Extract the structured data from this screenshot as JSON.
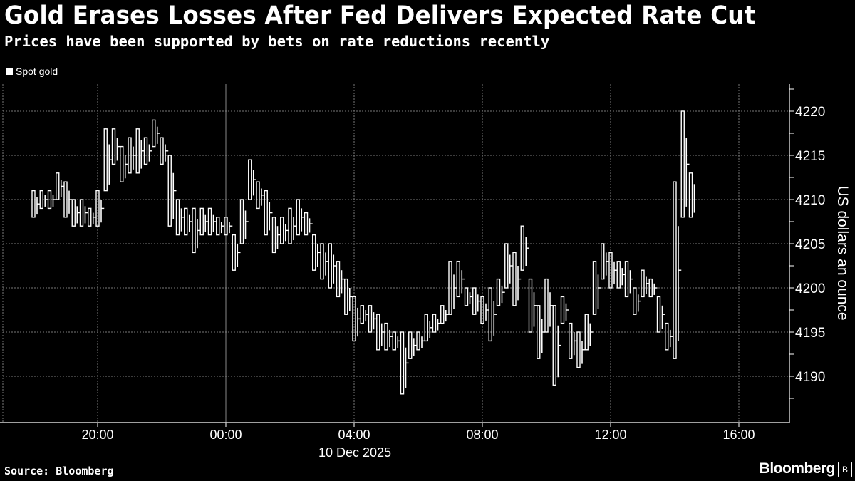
{
  "header": {
    "title": "Gold Erases Losses After Fed Delivers Expected Rate Cut",
    "subtitle": "Prices have been supported by bets on rate reductions recently"
  },
  "footer": {
    "source": "Source: Bloomberg",
    "brand": "Bloomberg"
  },
  "colors": {
    "background": "#000000",
    "series": "#ffffff",
    "grid": "#666666"
  },
  "chart_data": {
    "type": "candlestick",
    "title": "Gold Erases Losses After Fed Delivers Expected Rate Cut",
    "legend": [
      {
        "name": "Spot gold",
        "color": "#ffffff"
      }
    ],
    "legend_position": "top-left",
    "ylabel": "US dollars an ounce",
    "ylim": [
      4186,
      4223
    ],
    "yticks": [
      4190,
      4195,
      4200,
      4205,
      4210,
      4215,
      4220
    ],
    "grid": true,
    "x_start": "18:00",
    "interval_minutes": 15,
    "xticks": [
      {
        "label": "20:00",
        "hours": 20
      },
      {
        "label": "00:00",
        "hours": 24,
        "sublabel": "10 Dec 2025"
      },
      {
        "label": "04:00",
        "hours": 28
      },
      {
        "label": "08:00",
        "hours": 32
      },
      {
        "label": "12:00",
        "hours": 36
      },
      {
        "label": "16:00",
        "hours": 40
      }
    ],
    "xlim_hours": [
      17.1,
      41.6
    ],
    "series": [
      {
        "name": "Spot gold",
        "low_high": [
          [
            4208,
            4211
          ],
          [
            4209,
            4211
          ],
          [
            4209,
            4211
          ],
          [
            4210,
            4213
          ],
          [
            4208,
            4212
          ],
          [
            4207,
            4210
          ],
          [
            4207,
            4210
          ],
          [
            4207,
            4209
          ],
          [
            4207,
            4211
          ],
          [
            4211,
            4218
          ],
          [
            4214,
            4218
          ],
          [
            4212,
            4216
          ],
          [
            4213,
            4217
          ],
          [
            4213,
            4218
          ],
          [
            4214,
            4217
          ],
          [
            4216,
            4219
          ],
          [
            4214,
            4217
          ],
          [
            4207,
            4215
          ],
          [
            4206,
            4210
          ],
          [
            4206,
            4209
          ],
          [
            4204,
            4209
          ],
          [
            4206,
            4209
          ],
          [
            4206,
            4209
          ],
          [
            4206,
            4208
          ],
          [
            4206,
            4208
          ],
          [
            4202,
            4206
          ],
          [
            4205,
            4210
          ],
          [
            4210,
            4214.5
          ],
          [
            4209,
            4212
          ],
          [
            4206,
            4211
          ],
          [
            4204,
            4208
          ],
          [
            4205,
            4208
          ],
          [
            4205,
            4209
          ],
          [
            4206,
            4210
          ],
          [
            4206,
            4208.5
          ],
          [
            4202,
            4206
          ],
          [
            4201,
            4205
          ],
          [
            4200,
            4205
          ],
          [
            4199,
            4203
          ],
          [
            4197,
            4201
          ],
          [
            4194,
            4199
          ],
          [
            4196,
            4198
          ],
          [
            4195,
            4198
          ],
          [
            4193,
            4197
          ],
          [
            4193,
            4196
          ],
          [
            4193,
            4195
          ],
          [
            4188,
            4195
          ],
          [
            4192,
            4195
          ],
          [
            4193,
            4195
          ],
          [
            4194,
            4197
          ],
          [
            4195,
            4197
          ],
          [
            4196,
            4198
          ],
          [
            4197,
            4203
          ],
          [
            4199,
            4203
          ],
          [
            4198,
            4200
          ],
          [
            4197,
            4200
          ],
          [
            4196,
            4199
          ],
          [
            4194,
            4200
          ],
          [
            4198,
            4201
          ],
          [
            4200,
            4205
          ],
          [
            4198,
            4204
          ],
          [
            4202,
            4207
          ],
          [
            4195,
            4201
          ],
          [
            4192,
            4198
          ],
          [
            4195,
            4201
          ],
          [
            4189,
            4198
          ],
          [
            4196,
            4199
          ],
          [
            4192,
            4196
          ],
          [
            4191,
            4195
          ],
          [
            4193,
            4197
          ],
          [
            4197,
            4203
          ],
          [
            4201,
            4205
          ],
          [
            4200,
            4204
          ],
          [
            4200,
            4203
          ],
          [
            4199,
            4203
          ],
          [
            4197,
            4200
          ],
          [
            4199,
            4202
          ],
          [
            4199,
            4201
          ],
          [
            4195,
            4199
          ],
          [
            4193,
            4196
          ],
          [
            4192,
            4212
          ],
          [
            4208,
            4220
          ],
          [
            4208,
            4213
          ]
        ]
      }
    ]
  }
}
